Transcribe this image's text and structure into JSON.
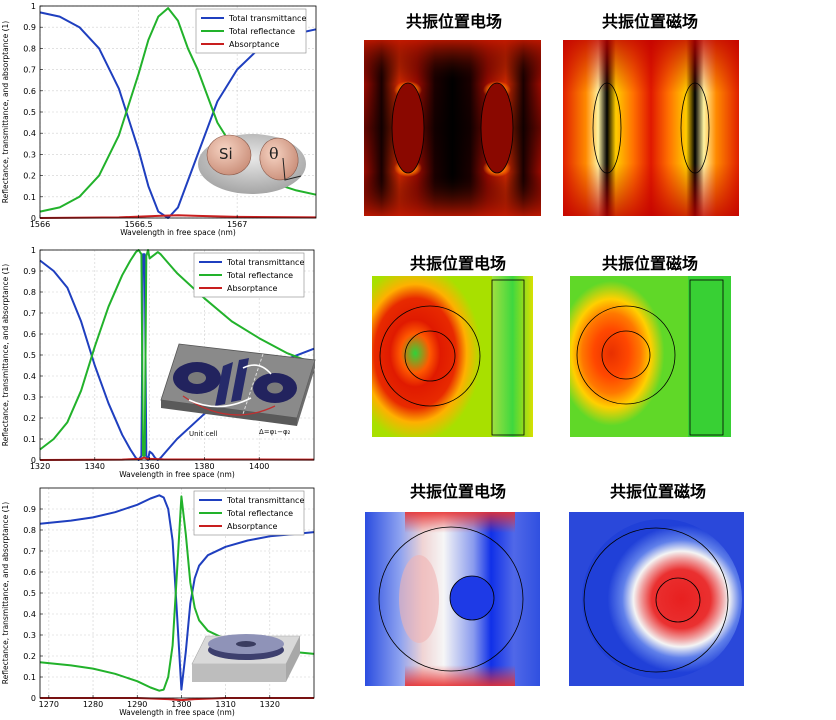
{
  "chart_data": [
    {
      "type": "line",
      "xlabel": "Wavelength in free space (nm)",
      "ylabel": "Reflectance, transmittance, and absorptance (1)",
      "xlim": [
        1566.0,
        1567.4
      ],
      "ylim": [
        0,
        1
      ],
      "x_ticks": [
        1566,
        1566.5,
        1567
      ],
      "x_tick_labels": [
        "1566",
        "1566.5",
        "1567"
      ],
      "y_ticks": [
        0,
        0.1,
        0.2,
        0.3,
        0.4,
        0.5,
        0.6,
        0.7,
        0.8,
        0.9,
        1
      ],
      "y_tick_labels": [
        "0",
        "0.1",
        "0.2",
        "0.3",
        "0.4",
        "0.5",
        "0.6",
        "0.7",
        "0.8",
        "0.9",
        "1"
      ],
      "grid": true,
      "legend_position": "top-right",
      "series": [
        {
          "name": "Total transmittance",
          "color": "#1f3fbf",
          "x": [
            1566.0,
            1566.1,
            1566.2,
            1566.3,
            1566.4,
            1566.5,
            1566.55,
            1566.6,
            1566.65,
            1566.7,
            1566.8,
            1566.9,
            1567.0,
            1567.1,
            1567.2,
            1567.3,
            1567.4
          ],
          "y": [
            0.97,
            0.95,
            0.9,
            0.8,
            0.61,
            0.32,
            0.15,
            0.03,
            0.0,
            0.05,
            0.3,
            0.55,
            0.7,
            0.79,
            0.84,
            0.87,
            0.89
          ]
        },
        {
          "name": "Total reflectance",
          "color": "#22b22b",
          "x": [
            1566.0,
            1566.1,
            1566.2,
            1566.3,
            1566.4,
            1566.5,
            1566.55,
            1566.6,
            1566.65,
            1566.7,
            1566.75,
            1566.8,
            1566.9,
            1567.0,
            1567.1,
            1567.2,
            1567.3,
            1567.4
          ],
          "y": [
            0.03,
            0.05,
            0.1,
            0.2,
            0.39,
            0.68,
            0.84,
            0.95,
            0.99,
            0.93,
            0.8,
            0.7,
            0.45,
            0.3,
            0.21,
            0.16,
            0.13,
            0.11
          ]
        },
        {
          "name": "Absorptance",
          "color": "#c81e1e",
          "x": [
            1566.0,
            1566.4,
            1566.6,
            1566.7,
            1566.8,
            1567.0,
            1567.4
          ],
          "y": [
            0.0,
            0.003,
            0.01,
            0.013,
            0.01,
            0.005,
            0.003
          ]
        }
      ]
    },
    {
      "type": "line",
      "xlabel": "Wavelength in free space (nm)",
      "ylabel": "Reflectance, transmittance, and absorptance (1)",
      "xlim": [
        1320,
        1420
      ],
      "ylim": [
        0,
        1
      ],
      "x_ticks": [
        1320,
        1340,
        1360,
        1380,
        1400
      ],
      "x_tick_labels": [
        "1320",
        "1340",
        "1360",
        "1380",
        "1400"
      ],
      "y_ticks": [
        0,
        0.1,
        0.2,
        0.3,
        0.4,
        0.5,
        0.6,
        0.7,
        0.8,
        0.9,
        1
      ],
      "y_tick_labels": [
        "0",
        "0.1",
        "0.2",
        "0.3",
        "0.4",
        "0.5",
        "0.6",
        "0.7",
        "0.8",
        "0.9",
        "1"
      ],
      "grid": true,
      "legend_position": "top-right",
      "series": [
        {
          "name": "Total transmittance",
          "color": "#1f3fbf",
          "x": [
            1320,
            1325,
            1330,
            1335,
            1340,
            1345,
            1350,
            1353,
            1355,
            1356,
            1357,
            1357.6,
            1358.2,
            1358.8,
            1359.4,
            1360,
            1361,
            1362,
            1363,
            1364,
            1366,
            1370,
            1380,
            1390,
            1400,
            1410,
            1420
          ],
          "y": [
            0.95,
            0.9,
            0.82,
            0.66,
            0.45,
            0.27,
            0.12,
            0.05,
            0.01,
            0.0,
            0.02,
            0.98,
            0.98,
            0.02,
            0.0,
            0.04,
            0.03,
            0.01,
            0.0,
            0.01,
            0.04,
            0.1,
            0.22,
            0.33,
            0.41,
            0.48,
            0.53
          ]
        },
        {
          "name": "Total reflectance",
          "color": "#22b22b",
          "x": [
            1320,
            1325,
            1330,
            1335,
            1340,
            1345,
            1350,
            1353,
            1355,
            1356,
            1357,
            1357.6,
            1358.2,
            1358.8,
            1359.4,
            1360,
            1361,
            1362,
            1363,
            1364,
            1366,
            1370,
            1380,
            1390,
            1400,
            1410,
            1420
          ],
          "y": [
            0.05,
            0.1,
            0.18,
            0.33,
            0.54,
            0.73,
            0.88,
            0.95,
            0.99,
            1.0,
            0.98,
            0.02,
            0.02,
            0.97,
            1.0,
            0.96,
            0.97,
            0.98,
            0.99,
            0.98,
            0.95,
            0.89,
            0.77,
            0.66,
            0.58,
            0.51,
            0.46
          ]
        },
        {
          "name": "Absorptance",
          "color": "#c81e1e",
          "x": [
            1320,
            1350,
            1357,
            1358,
            1359,
            1365,
            1420
          ],
          "y": [
            0.0,
            0.002,
            0.006,
            0.012,
            0.006,
            0.003,
            0.002
          ]
        }
      ]
    },
    {
      "type": "line",
      "xlabel": "Wavelength in free space (nm)",
      "ylabel": "Reflectance, transmittance, and absorptance (1)",
      "xlim": [
        1268,
        1330
      ],
      "ylim": [
        0,
        1
      ],
      "x_ticks": [
        1270,
        1280,
        1290,
        1300,
        1310,
        1320
      ],
      "x_tick_labels": [
        "1270",
        "1280",
        "1290",
        "1300",
        "1310",
        "1320"
      ],
      "y_ticks": [
        0,
        0.1,
        0.2,
        0.3,
        0.4,
        0.5,
        0.6,
        0.7,
        0.8,
        0.9
      ],
      "y_tick_labels": [
        "0",
        "0.1",
        "0.2",
        "0.3",
        "0.4",
        "0.5",
        "0.6",
        "0.7",
        "0.8",
        "0.9"
      ],
      "grid": true,
      "legend_position": "top-right",
      "series": [
        {
          "name": "Total transmittance",
          "color": "#1f3fbf",
          "x": [
            1268,
            1275,
            1280,
            1285,
            1290,
            1293,
            1295,
            1296,
            1297,
            1298,
            1299,
            1300,
            1301,
            1302,
            1303,
            1304,
            1306,
            1310,
            1315,
            1320,
            1325,
            1330
          ],
          "y": [
            0.83,
            0.845,
            0.86,
            0.885,
            0.92,
            0.95,
            0.965,
            0.955,
            0.9,
            0.75,
            0.4,
            0.04,
            0.22,
            0.45,
            0.57,
            0.63,
            0.68,
            0.72,
            0.75,
            0.77,
            0.78,
            0.79
          ]
        },
        {
          "name": "Total reflectance",
          "color": "#22b22b",
          "x": [
            1268,
            1275,
            1280,
            1285,
            1290,
            1293,
            1295,
            1296,
            1297,
            1298,
            1299,
            1300,
            1301,
            1302,
            1303,
            1304,
            1306,
            1310,
            1315,
            1320,
            1325,
            1330
          ],
          "y": [
            0.17,
            0.155,
            0.14,
            0.115,
            0.08,
            0.05,
            0.035,
            0.04,
            0.1,
            0.25,
            0.6,
            0.96,
            0.78,
            0.55,
            0.43,
            0.37,
            0.32,
            0.28,
            0.25,
            0.23,
            0.22,
            0.21
          ]
        },
        {
          "name": "Absorptance",
          "color": "#c81e1e",
          "x": [
            1268,
            1290,
            1297,
            1300,
            1303,
            1310,
            1330
          ],
          "y": [
            0.0,
            0.0,
            -0.005,
            -0.01,
            -0.005,
            0.0,
            0.0
          ]
        }
      ]
    }
  ],
  "field_titles": {
    "row1": {
      "e": "共振位置电场",
      "h": "共振位置磁场"
    },
    "row2": {
      "e": "共振位置电场",
      "h": "共振位置磁场"
    },
    "row3": {
      "e": "共振位置电场",
      "h": "共振位置磁场"
    }
  },
  "inset1": {
    "label_left": "Si",
    "label_right": "θ"
  },
  "inset2": {
    "unit_cell": "Unit cell",
    "formula": "Δ=φ₁−φ₂"
  }
}
